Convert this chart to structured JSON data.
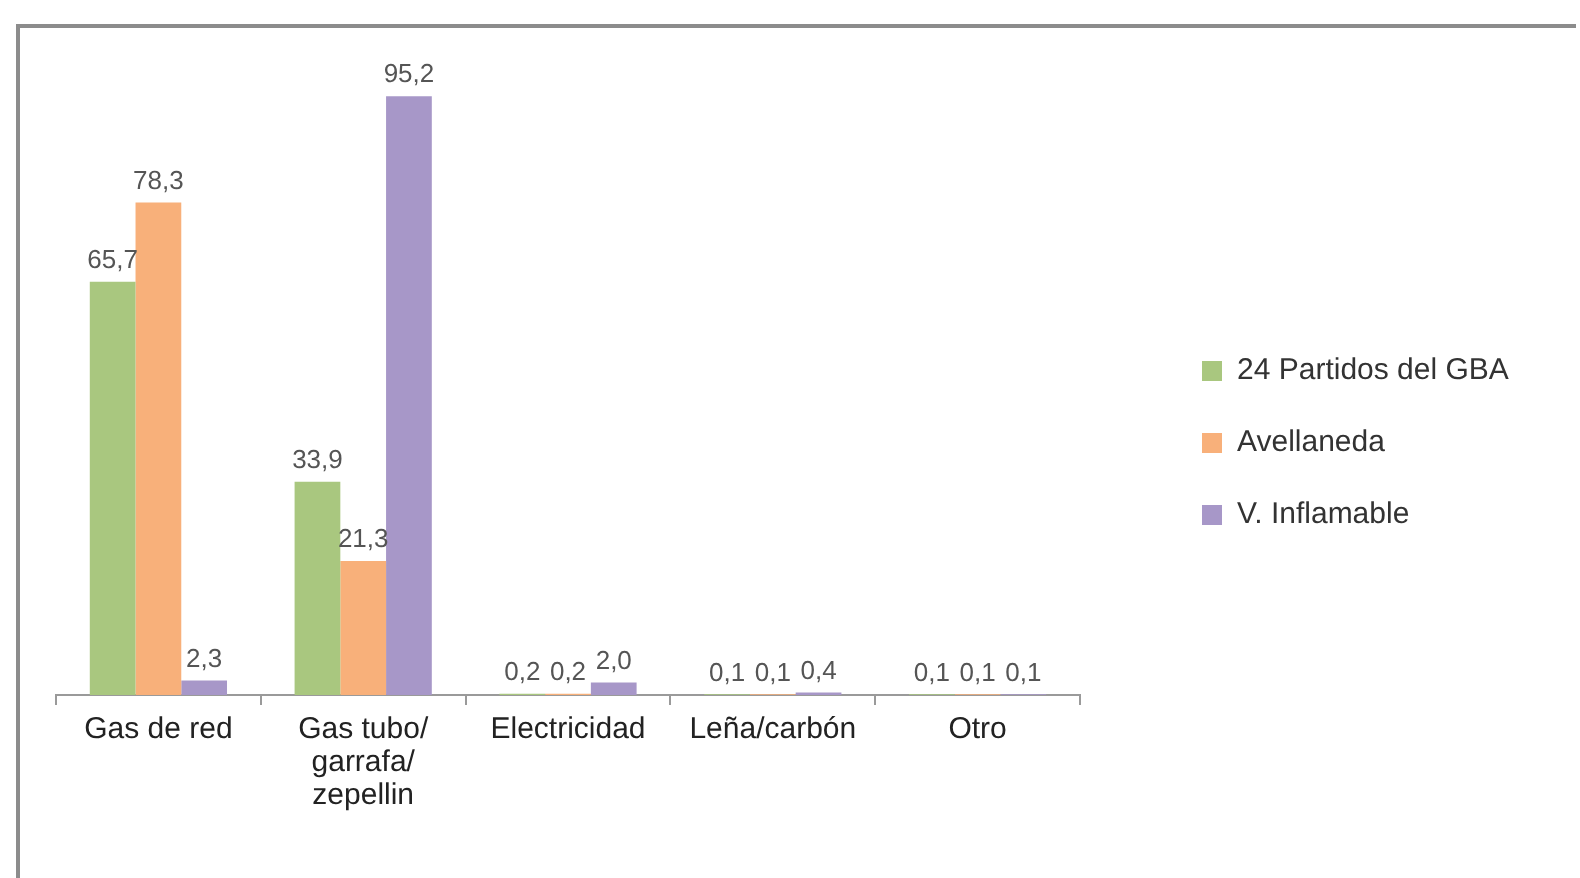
{
  "chart_data": {
    "type": "bar",
    "categories": [
      "Gas de red",
      "Gas tubo/ garrafa/ zepellin",
      "Electricidad",
      "Leña/carbón",
      "Otro"
    ],
    "series": [
      {
        "name": "24 Partidos del GBA",
        "color": "#a9c77f",
        "values": [
          65.7,
          33.9,
          0.2,
          0.1,
          0.1
        ],
        "value_labels": [
          "65,7",
          "33,9",
          "0,2",
          "0,1",
          "0,1"
        ]
      },
      {
        "name": "Avellaneda",
        "color": "#f8b07a",
        "values": [
          78.3,
          21.3,
          0.2,
          0.1,
          0.1
        ],
        "value_labels": [
          "78,3",
          "21,3",
          "0,2",
          "0,1",
          "0,1"
        ]
      },
      {
        "name": "V. Inflamable",
        "color": "#a797c8",
        "values": [
          2.3,
          95.2,
          2.0,
          0.4,
          0.1
        ],
        "value_labels": [
          "2,3",
          "95,2",
          "2,0",
          "0,4",
          "0,1"
        ]
      }
    ],
    "legend": "right"
  }
}
